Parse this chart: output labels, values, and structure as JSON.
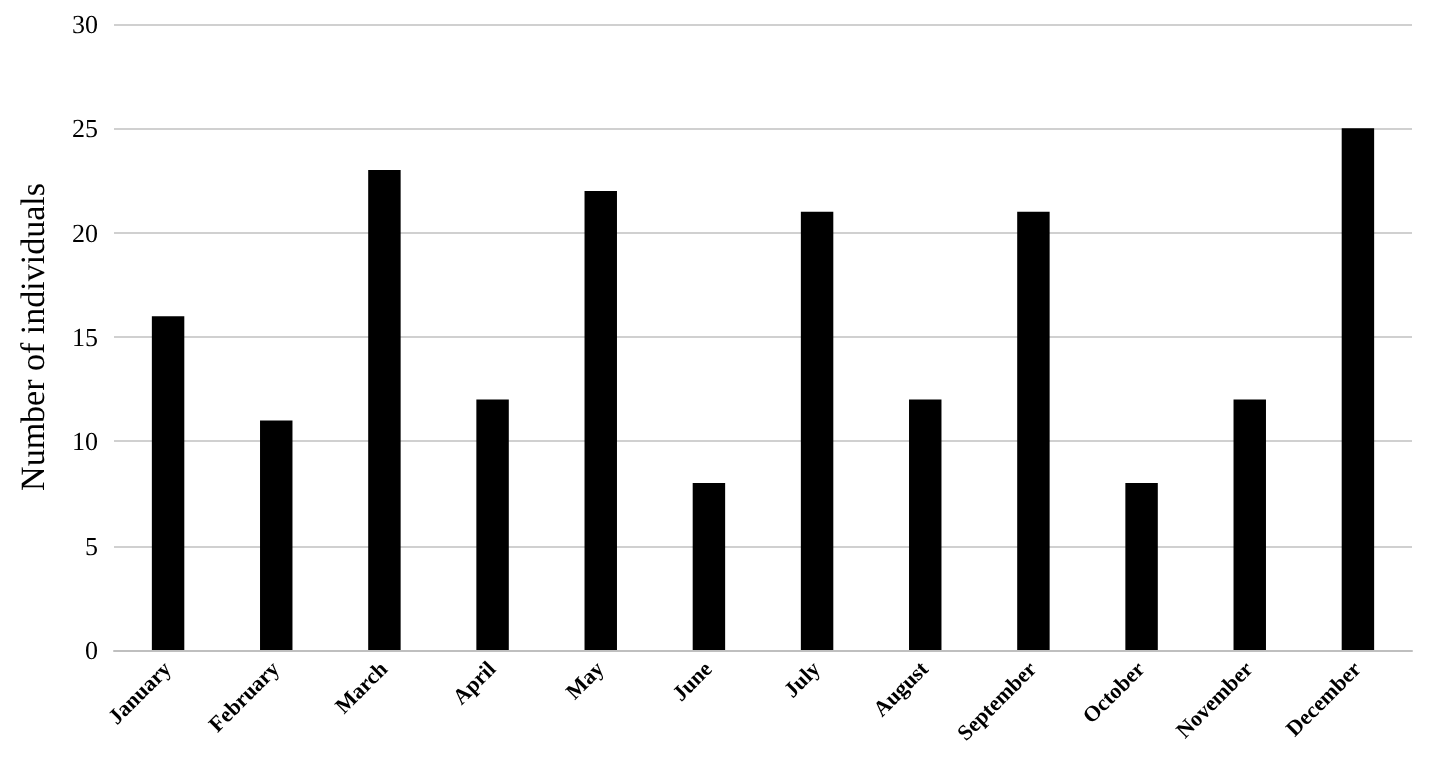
{
  "chart_data": {
    "type": "bar",
    "ylabel": "Number of individuals",
    "categories": [
      "January",
      "February",
      "March",
      "April",
      "May",
      "June",
      "July",
      "August",
      "September",
      "October",
      "November",
      "December"
    ],
    "values": [
      16,
      11,
      23,
      12,
      22,
      8,
      21,
      12,
      21,
      8,
      12,
      25
    ],
    "color": "#000000",
    "ylim": [
      0,
      30
    ],
    "yticks": [
      0,
      5,
      10,
      15,
      20,
      25,
      30
    ],
    "grid": "y"
  }
}
